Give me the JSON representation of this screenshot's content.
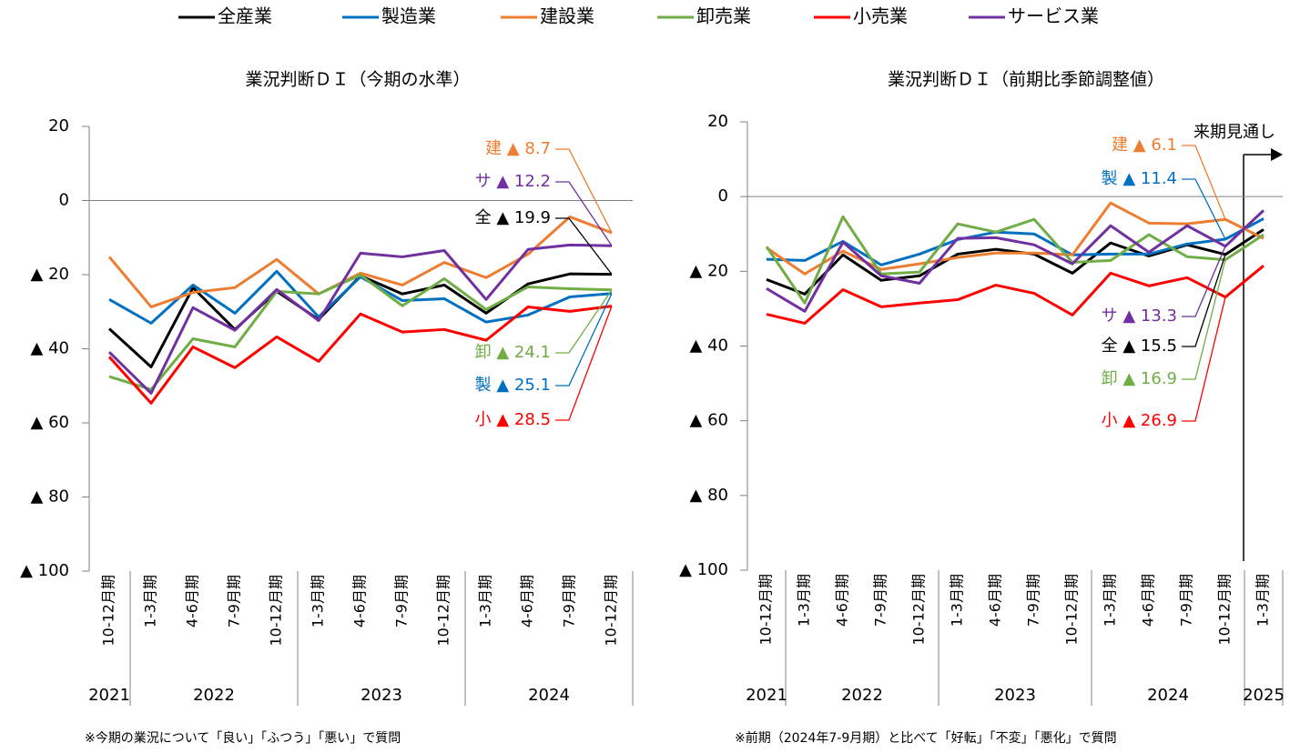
{
  "chart_data": [
    {
      "type": "line",
      "title": "業況判断ＤＩ（今期の水準）",
      "note": "※今期の業況について「良い」「ふつう」「悪い」で質問",
      "categories": [
        "10-12月期",
        "1-3月期",
        "4-6月期",
        "7-9月期",
        "10-12月期",
        "1-3月期",
        "4-6月期",
        "7-9月期",
        "10-12月期",
        "1-3月期",
        "4-6月期",
        "7-9月期",
        "10-12月期"
      ],
      "years": [
        "2021",
        "2022",
        "2022",
        "2022",
        "2022",
        "2023",
        "2023",
        "2023",
        "2023",
        "2024",
        "2024",
        "2024",
        "2024"
      ],
      "ylim": [
        -100,
        20
      ],
      "yticks": [
        20,
        0,
        {
          "value": -20,
          "label": "▲ 20"
        },
        {
          "value": -40,
          "label": "▲ 40"
        },
        {
          "value": -60,
          "label": "▲ 60"
        },
        {
          "value": -80,
          "label": "▲ 80"
        },
        {
          "value": -100,
          "label": "▲ 100"
        }
      ],
      "series": [
        {
          "name": "全産業",
          "color": "#000000",
          "values": [
            -34.6,
            -44.9,
            -23.5,
            -34.8,
            -24.5,
            -32.1,
            -20.3,
            -25.2,
            -22.8,
            -30.4,
            -22.5,
            -19.8,
            -19.9
          ],
          "value_labels": [
            null,
            null,
            null,
            null,
            null,
            null,
            null,
            null,
            null,
            null,
            null,
            null,
            "全 ▲ 19.9"
          ]
        },
        {
          "name": "製造業",
          "color": "#0070C0",
          "values": [
            -26.7,
            -33.1,
            -22.8,
            -30.4,
            -19.1,
            -31.4,
            -20.6,
            -27.0,
            -26.5,
            -32.8,
            -30.9,
            -26.0,
            -25.1
          ],
          "value_labels": [
            null,
            null,
            null,
            null,
            null,
            null,
            null,
            null,
            null,
            null,
            null,
            null,
            "製 ▲ 25.1"
          ]
        },
        {
          "name": "建設業",
          "color": "#ED7D31",
          "values": [
            -15.2,
            -28.7,
            -24.8,
            -23.5,
            -15.9,
            -25.2,
            -19.6,
            -22.8,
            -16.7,
            -20.8,
            -14.5,
            -4.4,
            -8.7
          ],
          "value_labels": [
            null,
            null,
            null,
            null,
            null,
            null,
            null,
            null,
            null,
            null,
            null,
            null,
            "建 ▲ 8.7"
          ]
        },
        {
          "name": "卸売業",
          "color": "#70AD47",
          "values": [
            -47.5,
            -51.0,
            -37.3,
            -39.5,
            -24.5,
            -25.2,
            -20.1,
            -28.4,
            -21.1,
            -29.4,
            -23.3,
            -23.8,
            -24.1
          ],
          "value_labels": [
            null,
            null,
            null,
            null,
            null,
            null,
            null,
            null,
            null,
            null,
            null,
            null,
            "卸 ▲ 24.1"
          ]
        },
        {
          "name": "小売業",
          "color": "#FF0000",
          "values": [
            -42.2,
            -54.7,
            -39.5,
            -45.1,
            -36.8,
            -43.4,
            -30.6,
            -35.5,
            -34.8,
            -37.7,
            -28.7,
            -29.9,
            -28.5
          ],
          "value_labels": [
            null,
            null,
            null,
            null,
            null,
            null,
            null,
            null,
            null,
            null,
            null,
            null,
            "小 ▲ 28.5"
          ]
        },
        {
          "name": "サービス業",
          "color": "#7030A0",
          "values": [
            -40.9,
            -52.0,
            -28.9,
            -35.0,
            -24.0,
            -32.4,
            -14.2,
            -15.2,
            -13.5,
            -26.7,
            -13.2,
            -12.0,
            -12.2
          ],
          "value_labels": [
            null,
            null,
            null,
            null,
            null,
            null,
            null,
            null,
            null,
            null,
            null,
            null,
            "サ ▲ 12.2"
          ]
        }
      ]
    },
    {
      "type": "line",
      "title": "業況判断ＤＩ（前期比季節調整値）",
      "note": "※前期（2024年7-9月期）と比べて「好転」「不変」「悪化」で質問",
      "annotation": "来期見通し",
      "categories": [
        "10-12月期",
        "1-3月期",
        "4-6月期",
        "7-9月期",
        "10-12月期",
        "1-3月期",
        "4-6月期",
        "7-9月期",
        "10-12月期",
        "1-3月期",
        "4-6月期",
        "7-9月期",
        "10-12月期",
        "1-3月期"
      ],
      "years": [
        "2021",
        "2022",
        "2022",
        "2022",
        "2022",
        "2023",
        "2023",
        "2023",
        "2023",
        "2024",
        "2024",
        "2024",
        "2024",
        "2025"
      ],
      "ylim": [
        -100,
        20
      ],
      "yticks": [
        20,
        0,
        {
          "value": -20,
          "label": "▲ 20"
        },
        {
          "value": -40,
          "label": "▲ 40"
        },
        {
          "value": -60,
          "label": "▲ 60"
        },
        {
          "value": -80,
          "label": "▲ 80"
        },
        {
          "value": -100,
          "label": "▲ 100"
        }
      ],
      "series": [
        {
          "color": "#000000",
          "values": [
            -22.2,
            -26.1,
            -15.6,
            -22.4,
            -21.2,
            -15.4,
            -14.1,
            -15.4,
            -20.5,
            -12.4,
            -15.9,
            -12.9,
            -15.5,
            -8.8
          ],
          "value_labels": [
            null,
            null,
            null,
            null,
            null,
            null,
            null,
            null,
            null,
            null,
            null,
            null,
            "全 ▲ 15.5",
            null
          ]
        },
        {
          "color": "#0070C0",
          "values": [
            -16.8,
            -17.1,
            -12.0,
            -18.3,
            -15.4,
            -11.5,
            -9.5,
            -10.0,
            -15.6,
            -15.4,
            -15.4,
            -12.7,
            -11.4,
            -5.9
          ],
          "value_labels": [
            null,
            null,
            null,
            null,
            null,
            null,
            null,
            null,
            null,
            null,
            null,
            null,
            "製 ▲ 11.4",
            null
          ]
        },
        {
          "color": "#ED7D31",
          "values": [
            -13.7,
            -20.7,
            -14.6,
            -19.5,
            -18.0,
            -16.3,
            -15.1,
            -15.1,
            -15.6,
            -1.7,
            -7.1,
            -7.3,
            -6.1,
            -11.2
          ],
          "value_labels": [
            null,
            null,
            null,
            null,
            null,
            null,
            null,
            null,
            null,
            null,
            null,
            null,
            "建 ▲ 6.1",
            null
          ]
        },
        {
          "color": "#70AD47",
          "values": [
            -13.4,
            -28.5,
            -5.4,
            -20.7,
            -20.2,
            -7.3,
            -9.5,
            -6.1,
            -17.6,
            -17.1,
            -10.2,
            -16.1,
            -16.9,
            -10.2
          ],
          "value_labels": [
            null,
            null,
            null,
            null,
            null,
            null,
            null,
            null,
            null,
            null,
            null,
            null,
            "卸 ▲ 16.9",
            null
          ]
        },
        {
          "color": "#FF0000",
          "values": [
            -31.5,
            -33.9,
            -24.9,
            -29.5,
            -28.5,
            -27.6,
            -23.7,
            -25.9,
            -31.7,
            -20.5,
            -23.9,
            -21.7,
            -26.9,
            -18.5
          ],
          "value_labels": [
            null,
            null,
            null,
            null,
            null,
            null,
            null,
            null,
            null,
            null,
            null,
            null,
            "小 ▲ 26.9",
            null
          ]
        },
        {
          "color": "#7030A0",
          "values": [
            -24.6,
            -30.7,
            -12.2,
            -21.2,
            -23.2,
            -11.2,
            -11.0,
            -12.9,
            -18.0,
            -7.8,
            -14.9,
            -7.8,
            -13.3,
            -3.7
          ],
          "value_labels": [
            null,
            null,
            null,
            null,
            null,
            null,
            null,
            null,
            null,
            null,
            null,
            null,
            "サ ▲ 13.3",
            null
          ]
        }
      ]
    }
  ]
}
